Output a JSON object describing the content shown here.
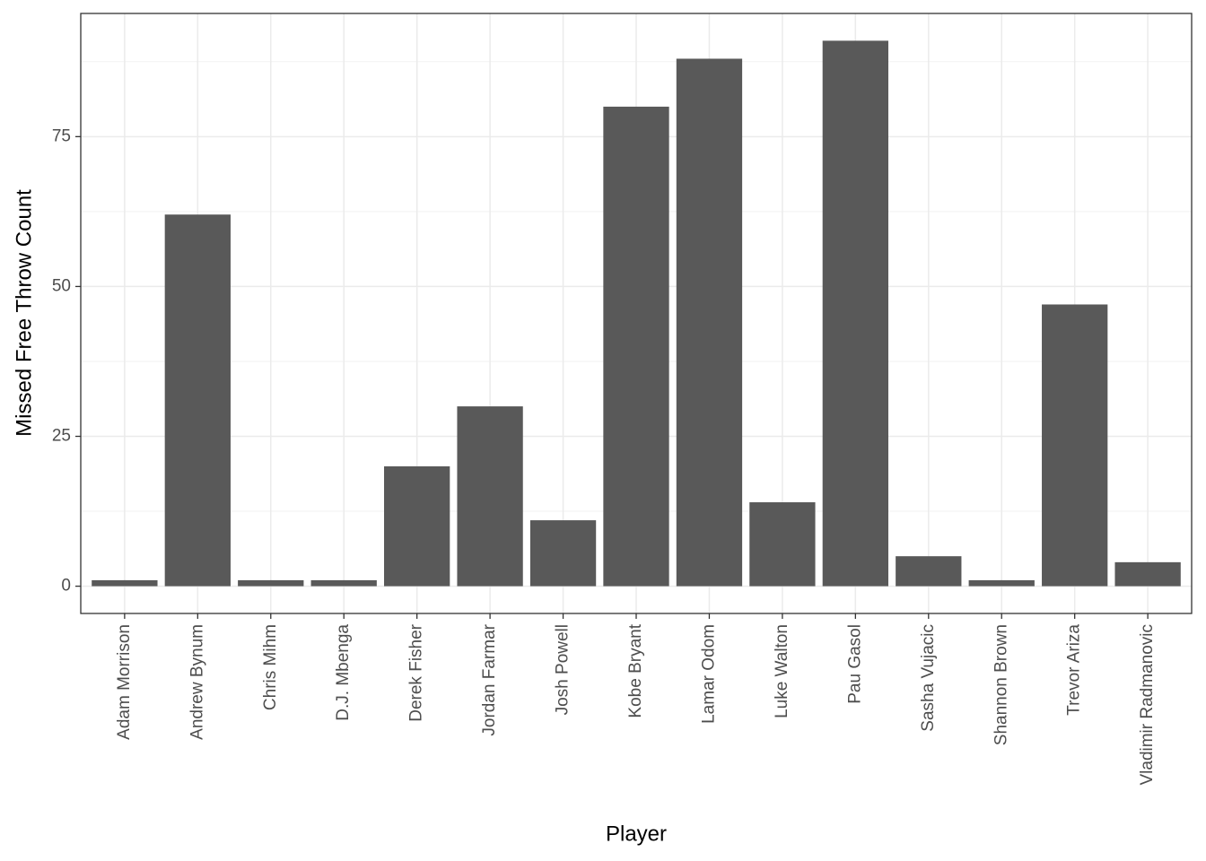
{
  "chart_data": {
    "type": "bar",
    "x_label": "Player",
    "y_label": "Missed Free Throw Count",
    "categories": [
      "Adam Morrison",
      "Andrew Bynum",
      "Chris Mihm",
      "D.J. Mbenga",
      "Derek Fisher",
      "Jordan Farmar",
      "Josh Powell",
      "Kobe Bryant",
      "Lamar Odom",
      "Luke Walton",
      "Pau Gasol",
      "Sasha Vujacic",
      "Shannon Brown",
      "Trevor Ariza",
      "Vladimir Radmanovic"
    ],
    "values": [
      1,
      62,
      1,
      1,
      20,
      30,
      11,
      80,
      88,
      14,
      91,
      5,
      1,
      47,
      4
    ],
    "color": "#595959",
    "ylim": [
      -4.55,
      95.55
    ],
    "yticks": [
      0,
      25,
      50,
      75
    ],
    "grid": true
  }
}
